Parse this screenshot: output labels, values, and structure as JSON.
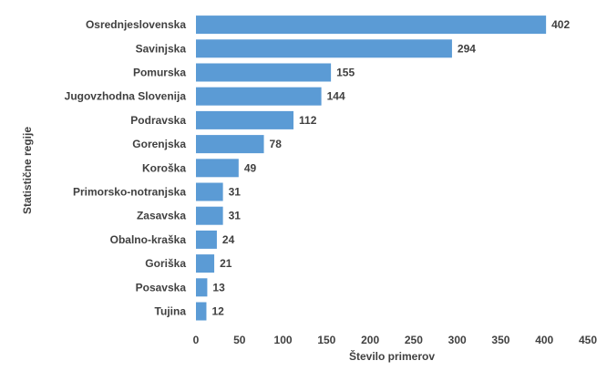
{
  "chart_data": {
    "type": "bar",
    "orientation": "horizontal",
    "categories": [
      "Osrednjeslovenska",
      "Savinjska",
      "Pomurska",
      "Jugovzhodna Slovenija",
      "Podravska",
      "Gorenjska",
      "Koroška",
      "Primorsko-notranjska",
      "Zasavska",
      "Obalno-kraška",
      "Goriška",
      "Posavska",
      "Tujina"
    ],
    "values": [
      402,
      294,
      155,
      144,
      112,
      78,
      49,
      31,
      31,
      24,
      21,
      13,
      12
    ],
    "title": "",
    "xlabel": "Število primerov",
    "ylabel": "Statistične regije",
    "xlim": [
      0,
      450
    ],
    "xticks": [
      0,
      50,
      100,
      150,
      200,
      250,
      300,
      350,
      400,
      450
    ],
    "grid": false,
    "legend": "none",
    "color": "#5b9bd5"
  }
}
